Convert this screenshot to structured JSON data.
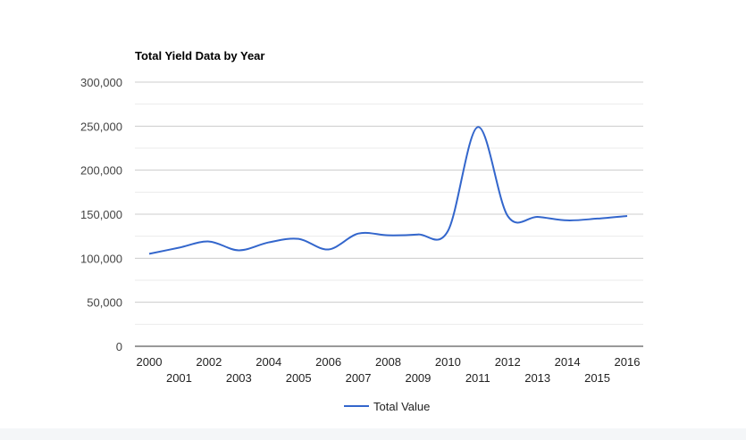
{
  "chart_data": {
    "type": "line",
    "title": "Total Yield Data by Year",
    "xlabel": "",
    "ylabel": "",
    "categories": [
      "2000",
      "2001",
      "2002",
      "2003",
      "2004",
      "2005",
      "2006",
      "2007",
      "2008",
      "2009",
      "2010",
      "2011",
      "2012",
      "2013",
      "2014",
      "2015",
      "2016"
    ],
    "series": [
      {
        "name": "Total Value",
        "color": "#3366cc",
        "values": [
          105000,
          112000,
          119000,
          109000,
          118000,
          122000,
          110000,
          128000,
          126000,
          127000,
          131000,
          249000,
          148000,
          147000,
          143000,
          145000,
          148000
        ]
      }
    ],
    "ylim": [
      0,
      300000
    ],
    "yticks": [
      0,
      50000,
      100000,
      150000,
      200000,
      250000,
      300000
    ],
    "ytick_labels": [
      "0",
      "50,000",
      "100,000",
      "150,000",
      "200,000",
      "250,000",
      "300,000"
    ],
    "grid": true,
    "legend_position": "bottom"
  }
}
